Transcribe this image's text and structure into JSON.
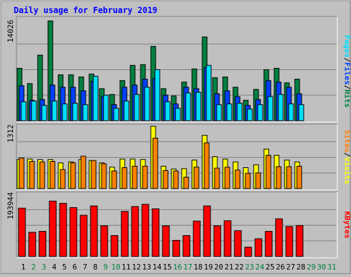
{
  "title": "Daily usage for February 2019",
  "colors": {
    "title": "#0000ff",
    "hits": "#008040",
    "files": "#0040ff",
    "pages": "#00e0ff",
    "visits": "#ffff00",
    "sites": "#ff8000",
    "kbytes": "#ff0000",
    "weekend_day": "#008040",
    "no_data_day": "#008040",
    "panel_bg": "#c0c0c0"
  },
  "chart_data": [
    {
      "type": "bar",
      "panel": "top",
      "title": "Daily usage for February 2019",
      "ymax_label": "14026",
      "ylim": [
        0,
        14026
      ],
      "grid": true,
      "legend": "right side, vertical",
      "legend_items": [
        {
          "label": "Pages",
          "color_key": "pages"
        },
        {
          "label": "Files",
          "color_key": "files"
        },
        {
          "label": "Hits",
          "color_key": "hits"
        }
      ],
      "categories": [
        "1",
        "2",
        "3",
        "4",
        "5",
        "6",
        "7",
        "8",
        "9",
        "10",
        "11",
        "12",
        "13",
        "14",
        "15",
        "16",
        "17",
        "18",
        "19",
        "20",
        "21",
        "22",
        "23",
        "24",
        "25",
        "26",
        "27",
        "28"
      ],
      "series": [
        {
          "name": "Hits",
          "color_key": "hits",
          "values": [
            7200,
            5100,
            9000,
            13700,
            6300,
            6300,
            6000,
            6400,
            4400,
            3600,
            5500,
            7600,
            7700,
            10200,
            4400,
            3400,
            5300,
            7100,
            11500,
            5900,
            6000,
            4600,
            2800,
            4300,
            7000,
            7200,
            5200,
            5700
          ]
        },
        {
          "name": "Files",
          "color_key": "files",
          "values": [
            4800,
            2800,
            2900,
            4900,
            4600,
            4600,
            4100,
            5400,
            3300,
            2200,
            4600,
            4900,
            5700,
            5800,
            3500,
            2300,
            4600,
            4400,
            7300,
            3700,
            4100,
            3300,
            2100,
            2900,
            5500,
            5300,
            4600,
            3700
          ]
        },
        {
          "name": "Pages",
          "color_key": "pages",
          "values": [
            2600,
            2700,
            2100,
            2700,
            2300,
            2400,
            2200,
            6100,
            3500,
            1700,
            2700,
            3600,
            4600,
            7000,
            2600,
            1700,
            3800,
            3900,
            7600,
            2200,
            2300,
            2400,
            1600,
            2200,
            3300,
            3600,
            2300,
            2200
          ]
        }
      ]
    },
    {
      "type": "bar",
      "panel": "middle",
      "ymax_label": "1312",
      "ylim": [
        0,
        1312
      ],
      "grid": true,
      "legend": "right side, vertical",
      "legend_items": [
        {
          "label": "Sites",
          "color_key": "sites"
        },
        {
          "label": "Visits",
          "color_key": "visits"
        }
      ],
      "categories": [
        "1",
        "2",
        "3",
        "4",
        "5",
        "6",
        "7",
        "8",
        "9",
        "10",
        "11",
        "12",
        "13",
        "14",
        "15",
        "16",
        "17",
        "18",
        "19",
        "20",
        "21",
        "22",
        "23",
        "24",
        "25",
        "26",
        "27",
        "28"
      ],
      "series": [
        {
          "name": "Visits",
          "color_key": "visits",
          "values": [
            610,
            620,
            610,
            610,
            540,
            560,
            610,
            590,
            540,
            450,
            620,
            620,
            610,
            1310,
            470,
            410,
            420,
            600,
            1120,
            670,
            620,
            560,
            440,
            500,
            830,
            700,
            600,
            560
          ]
        },
        {
          "name": "Sites",
          "color_key": "sites",
          "values": [
            640,
            570,
            560,
            570,
            400,
            540,
            680,
            590,
            520,
            370,
            440,
            470,
            470,
            1060,
            380,
            370,
            240,
            450,
            960,
            430,
            450,
            390,
            320,
            330,
            700,
            460,
            460,
            470
          ]
        }
      ]
    },
    {
      "type": "bar",
      "panel": "bottom",
      "ymax_label": "193944",
      "ylim": [
        0,
        193944
      ],
      "grid": true,
      "legend": "right side, vertical",
      "legend_items": [
        {
          "label": "KBytes",
          "color_key": "kbytes"
        }
      ],
      "categories": [
        "1",
        "2",
        "3",
        "4",
        "5",
        "6",
        "7",
        "8",
        "9",
        "10",
        "11",
        "12",
        "13",
        "14",
        "15",
        "16",
        "17",
        "18",
        "19",
        "20",
        "21",
        "22",
        "23",
        "24",
        "25",
        "26",
        "27",
        "28"
      ],
      "series": [
        {
          "name": "KBytes",
          "color_key": "kbytes",
          "values": [
            150000,
            75000,
            78000,
            172000,
            165000,
            152000,
            128000,
            157000,
            95000,
            65000,
            140000,
            155000,
            162000,
            148000,
            95000,
            50000,
            65000,
            110000,
            157000,
            95000,
            111000,
            80000,
            29000,
            55000,
            78000,
            117000,
            93000,
            96000
          ]
        }
      ]
    }
  ],
  "x_axis": {
    "days": [
      {
        "label": "1",
        "kind": "weekday"
      },
      {
        "label": "2",
        "kind": "weekend"
      },
      {
        "label": "3",
        "kind": "weekend"
      },
      {
        "label": "4",
        "kind": "weekday"
      },
      {
        "label": "5",
        "kind": "weekday"
      },
      {
        "label": "6",
        "kind": "weekday"
      },
      {
        "label": "7",
        "kind": "weekday"
      },
      {
        "label": "8",
        "kind": "weekday"
      },
      {
        "label": "9",
        "kind": "weekend"
      },
      {
        "label": "10",
        "kind": "weekend"
      },
      {
        "label": "11",
        "kind": "weekday"
      },
      {
        "label": "12",
        "kind": "weekday"
      },
      {
        "label": "13",
        "kind": "weekday"
      },
      {
        "label": "14",
        "kind": "weekday"
      },
      {
        "label": "15",
        "kind": "weekday"
      },
      {
        "label": "16",
        "kind": "weekend"
      },
      {
        "label": "17",
        "kind": "weekend"
      },
      {
        "label": "18",
        "kind": "weekday"
      },
      {
        "label": "19",
        "kind": "weekday"
      },
      {
        "label": "20",
        "kind": "weekday"
      },
      {
        "label": "21",
        "kind": "weekday"
      },
      {
        "label": "22",
        "kind": "weekday"
      },
      {
        "label": "23",
        "kind": "weekend"
      },
      {
        "label": "24",
        "kind": "weekend"
      },
      {
        "label": "25",
        "kind": "weekday"
      },
      {
        "label": "26",
        "kind": "weekday"
      },
      {
        "label": "27",
        "kind": "weekday"
      },
      {
        "label": "28",
        "kind": "weekday"
      },
      {
        "label": "29",
        "kind": "nodata"
      },
      {
        "label": "30",
        "kind": "nodata"
      },
      {
        "label": "31",
        "kind": "nodata"
      }
    ]
  }
}
